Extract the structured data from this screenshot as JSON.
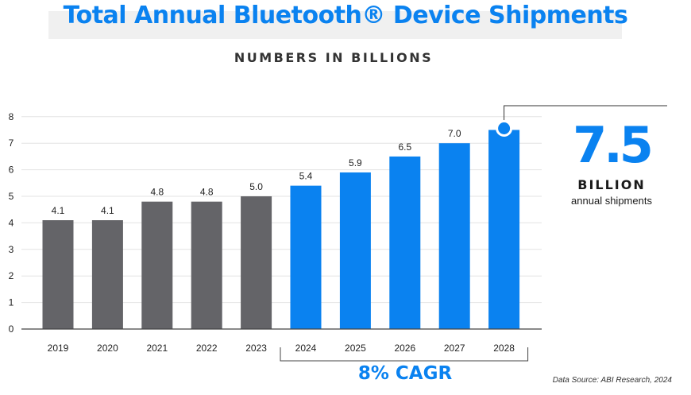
{
  "title": "Total Annual Bluetooth® Device Shipments",
  "subtitle": "NUMBERS IN BILLIONS",
  "callout": {
    "value": "7.5",
    "unit": "BILLION",
    "description": "annual shipments"
  },
  "cagr_label": "8% CAGR",
  "source": "Data Source: ABI Research, 2024",
  "colors": {
    "historical": "#646468",
    "forecast": "#0a82f0",
    "title": "#0a82f0"
  },
  "chart_data": {
    "type": "bar",
    "title": "Total Annual Bluetooth® Device Shipments",
    "subtitle": "NUMBERS IN BILLIONS",
    "xlabel": "",
    "ylabel": "",
    "categories": [
      "2019",
      "2020",
      "2021",
      "2022",
      "2023",
      "2024",
      "2025",
      "2026",
      "2027",
      "2028"
    ],
    "values": [
      4.1,
      4.1,
      4.8,
      4.8,
      5.0,
      5.4,
      5.9,
      6.5,
      7.0,
      7.5
    ],
    "data_labels": [
      "4.1",
      "4.1",
      "4.8",
      "4.8",
      "5.0",
      "5.4",
      "5.9",
      "6.5",
      "7.0",
      ""
    ],
    "forecast_from": "2024",
    "ylim": [
      0,
      8
    ],
    "yticks": [
      0,
      1,
      2,
      3,
      4,
      5,
      6,
      7,
      8
    ],
    "grid": true,
    "legend": "none"
  }
}
